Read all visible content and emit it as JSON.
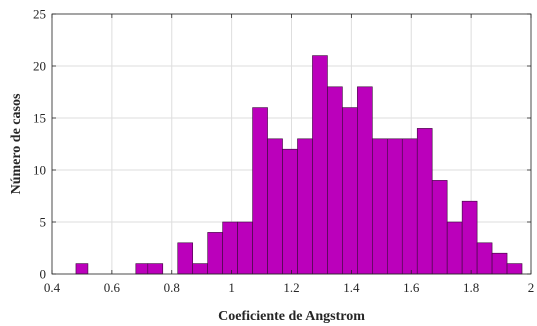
{
  "chart_data": {
    "type": "bar",
    "subtype": "histogram",
    "title": "",
    "xlabel": "Coeficiente de Angstrom",
    "ylabel": "Número de casos",
    "xlim": [
      0.4,
      2
    ],
    "ylim": [
      0,
      25
    ],
    "xticks": [
      "0.4",
      "0.6",
      "0.8",
      "1",
      "1.2",
      "1.4",
      "1.6",
      "1.8",
      "2"
    ],
    "yticks": [
      "0",
      "5",
      "10",
      "15",
      "20",
      "25"
    ],
    "grid": true,
    "legend": "none",
    "bar_color": "#bb00bb",
    "bins": [
      {
        "x0": 0.48,
        "x1": 0.52,
        "count": 1
      },
      {
        "x0": 0.68,
        "x1": 0.72,
        "count": 1
      },
      {
        "x0": 0.72,
        "x1": 0.77,
        "count": 1
      },
      {
        "x0": 0.82,
        "x1": 0.87,
        "count": 3
      },
      {
        "x0": 0.87,
        "x1": 0.92,
        "count": 1
      },
      {
        "x0": 0.92,
        "x1": 0.97,
        "count": 4
      },
      {
        "x0": 0.97,
        "x1": 1.02,
        "count": 5
      },
      {
        "x0": 1.02,
        "x1": 1.07,
        "count": 5
      },
      {
        "x0": 1.07,
        "x1": 1.12,
        "count": 16
      },
      {
        "x0": 1.12,
        "x1": 1.17,
        "count": 13
      },
      {
        "x0": 1.17,
        "x1": 1.22,
        "count": 12
      },
      {
        "x0": 1.22,
        "x1": 1.27,
        "count": 13
      },
      {
        "x0": 1.27,
        "x1": 1.32,
        "count": 21
      },
      {
        "x0": 1.32,
        "x1": 1.37,
        "count": 18
      },
      {
        "x0": 1.37,
        "x1": 1.42,
        "count": 16
      },
      {
        "x0": 1.42,
        "x1": 1.47,
        "count": 18
      },
      {
        "x0": 1.47,
        "x1": 1.52,
        "count": 13
      },
      {
        "x0": 1.52,
        "x1": 1.57,
        "count": 13
      },
      {
        "x0": 1.57,
        "x1": 1.62,
        "count": 13
      },
      {
        "x0": 1.62,
        "x1": 1.67,
        "count": 14
      },
      {
        "x0": 1.67,
        "x1": 1.72,
        "count": 9
      },
      {
        "x0": 1.72,
        "x1": 1.77,
        "count": 5
      },
      {
        "x0": 1.77,
        "x1": 1.82,
        "count": 7
      },
      {
        "x0": 1.82,
        "x1": 1.87,
        "count": 3
      },
      {
        "x0": 1.87,
        "x1": 1.92,
        "count": 2
      },
      {
        "x0": 1.92,
        "x1": 1.97,
        "count": 1
      }
    ]
  }
}
